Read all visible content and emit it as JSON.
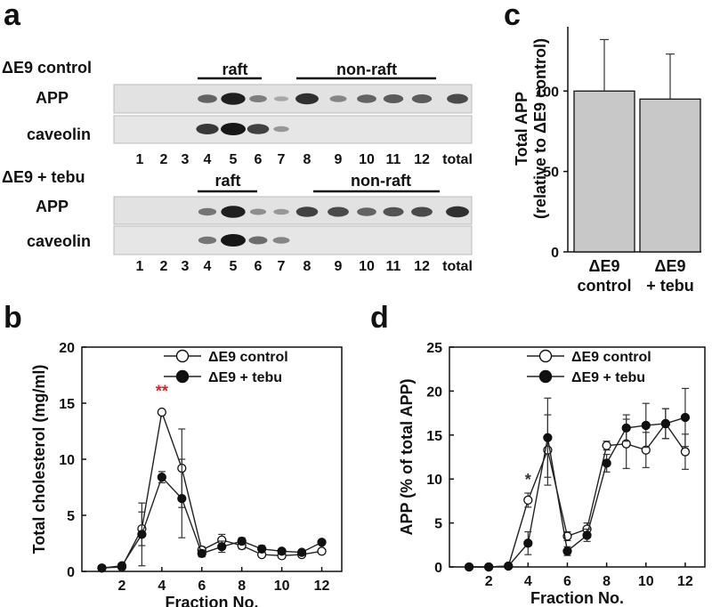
{
  "panel_labels": {
    "a": "a",
    "b": "b",
    "c": "c",
    "d": "d"
  },
  "blot": {
    "groups": [
      {
        "condition": "ΔE9 control",
        "raft_label": "raft",
        "nonraft_label": "non-raft",
        "rows": [
          {
            "protein": "APP",
            "intensities": [
              0,
              0,
              0,
              0.55,
              0.95,
              0.4,
              0.15,
              0.85,
              0.35,
              0.55,
              0.6,
              0.6,
              0.7
            ]
          },
          {
            "protein": "caveolin",
            "intensities": [
              0,
              0,
              0,
              0.8,
              1.0,
              0.75,
              0.25,
              0,
              0,
              0,
              0,
              0,
              0
            ]
          }
        ],
        "lanes": [
          "1",
          "2",
          "3",
          "4",
          "5",
          "6",
          "7",
          "8",
          "9",
          "10",
          "11",
          "12",
          "total"
        ]
      },
      {
        "condition": "ΔE9 + tebu",
        "raft_label": "raft",
        "nonraft_label": "non-raft",
        "rows": [
          {
            "protein": "APP",
            "intensities": [
              0,
              0,
              0,
              0.45,
              0.95,
              0.3,
              0.25,
              0.75,
              0.7,
              0.55,
              0.65,
              0.7,
              0.85
            ]
          },
          {
            "protein": "caveolin",
            "intensities": [
              0,
              0,
              0,
              0.45,
              1.0,
              0.5,
              0.35,
              0,
              0,
              0,
              0,
              0,
              0
            ]
          }
        ],
        "lanes": [
          "1",
          "2",
          "3",
          "4",
          "5",
          "6",
          "7",
          "8",
          "9",
          "10",
          "11",
          "12",
          "total"
        ]
      }
    ]
  },
  "chart_data": [
    {
      "id": "b",
      "type": "line",
      "title": "",
      "xlabel": "Fraction No.",
      "ylabel": "Total cholesterol (mg/ml)",
      "xlim": [
        0,
        13
      ],
      "ylim": [
        0,
        20
      ],
      "xticks": [
        2,
        4,
        6,
        8,
        10,
        12
      ],
      "yticks": [
        0,
        5,
        10,
        15,
        20
      ],
      "legend": "top-right",
      "x": [
        1,
        2,
        3,
        4,
        5,
        6,
        7,
        8,
        9,
        10,
        11,
        12
      ],
      "series": [
        {
          "name": "ΔE9 control",
          "marker": "open-circle",
          "values": [
            0.3,
            0.4,
            3.8,
            14.2,
            9.2,
            1.9,
            2.8,
            2.3,
            1.5,
            1.4,
            1.5,
            1.8
          ],
          "errors": [
            0,
            0,
            1.5,
            0.2,
            3.5,
            0.3,
            0.5,
            0.3,
            0.2,
            0.2,
            0.2,
            0.2
          ]
        },
        {
          "name": "ΔE9 + tebu",
          "marker": "filled-circle",
          "values": [
            0.3,
            0.5,
            3.3,
            8.4,
            6.5,
            1.6,
            2.2,
            2.7,
            2.0,
            1.8,
            1.7,
            2.6
          ],
          "errors": [
            0,
            0,
            2.8,
            0.5,
            3.5,
            0.3,
            0.5,
            0.3,
            0.3,
            0.2,
            0.2,
            0.2
          ]
        }
      ],
      "annotations": [
        {
          "text": "**",
          "x": 4,
          "y": 15.6,
          "color": "#e02020"
        }
      ]
    },
    {
      "id": "c",
      "type": "bar",
      "title": "",
      "xlabel": "",
      "ylabel_line1": "Total APP",
      "ylabel_line2": "(relative to ΔE9 control)",
      "ylim": [
        0,
        140
      ],
      "yticks": [
        0,
        50,
        100
      ],
      "categories": [
        [
          "ΔE9",
          "control"
        ],
        [
          "ΔE9",
          "+ tebu"
        ]
      ],
      "values": [
        100,
        95
      ],
      "errors": [
        32,
        28
      ],
      "bar_color": "#c8c8c8"
    },
    {
      "id": "d",
      "type": "line",
      "title": "",
      "xlabel": "Fraction No.",
      "ylabel": "APP (% of total APP)",
      "xlim": [
        0,
        13
      ],
      "ylim": [
        0,
        25
      ],
      "xticks": [
        2,
        4,
        6,
        8,
        10,
        12
      ],
      "yticks": [
        0,
        5,
        10,
        15,
        20,
        25
      ],
      "legend": "top-right",
      "x": [
        1,
        2,
        3,
        4,
        5,
        6,
        7,
        8,
        9,
        10,
        11,
        12
      ],
      "series": [
        {
          "name": "ΔE9 control",
          "marker": "open-circle",
          "values": [
            0,
            0,
            0.1,
            7.6,
            13.3,
            3.5,
            4.3,
            13.8,
            14.0,
            13.3,
            16.3,
            13.1
          ],
          "errors": [
            0,
            0,
            0,
            0.8,
            4.0,
            0.5,
            0.7,
            0.5,
            2.8,
            2.0,
            1.7,
            2.0
          ]
        },
        {
          "name": "ΔE9 + tebu",
          "marker": "filled-circle",
          "values": [
            0,
            0,
            0.1,
            2.7,
            14.7,
            1.8,
            3.6,
            11.8,
            15.8,
            16.1,
            16.3,
            17.0
          ],
          "errors": [
            0,
            0,
            0,
            1.3,
            4.5,
            0.5,
            0.7,
            1.0,
            1.5,
            2.5,
            1.7,
            3.3
          ]
        }
      ],
      "annotations": [
        {
          "text": "*",
          "x": 4,
          "y": 9.3,
          "color": "#333333"
        }
      ]
    }
  ]
}
